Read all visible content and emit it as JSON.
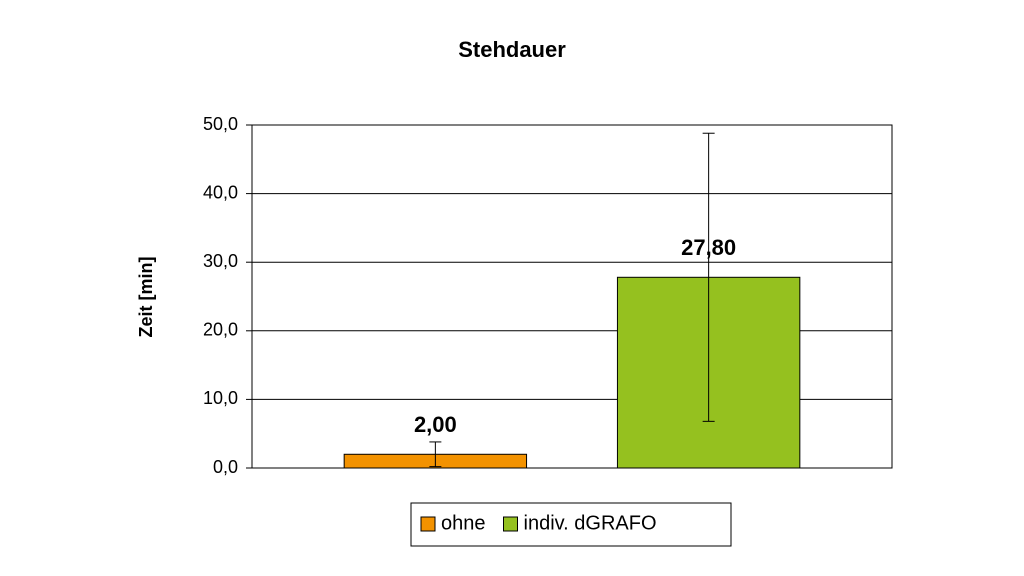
{
  "chart_data": {
    "type": "bar",
    "title": "Stehdauer",
    "y_label": "Zeit [min]",
    "categories": [
      null
    ],
    "series": [
      {
        "name": "ohne",
        "color": "#f39200",
        "values": [
          2.0
        ],
        "value_labels": [
          "2,00"
        ],
        "errors": [
          1.8
        ]
      },
      {
        "name": "indiv. dGRAFO",
        "color": "#95c11f",
        "values": [
          27.8
        ],
        "value_labels": [
          "27,80"
        ],
        "errors": [
          21.0
        ]
      }
    ],
    "ylim": [
      0,
      50
    ],
    "yticks": [
      {
        "value": 0,
        "label": "0,0"
      },
      {
        "value": 10,
        "label": "10,0"
      },
      {
        "value": 20,
        "label": "20,0"
      },
      {
        "value": 30,
        "label": "30,0"
      },
      {
        "value": 40,
        "label": "40,0"
      },
      {
        "value": 50,
        "label": "50,0"
      }
    ],
    "grid": true,
    "legend": "bottom"
  }
}
